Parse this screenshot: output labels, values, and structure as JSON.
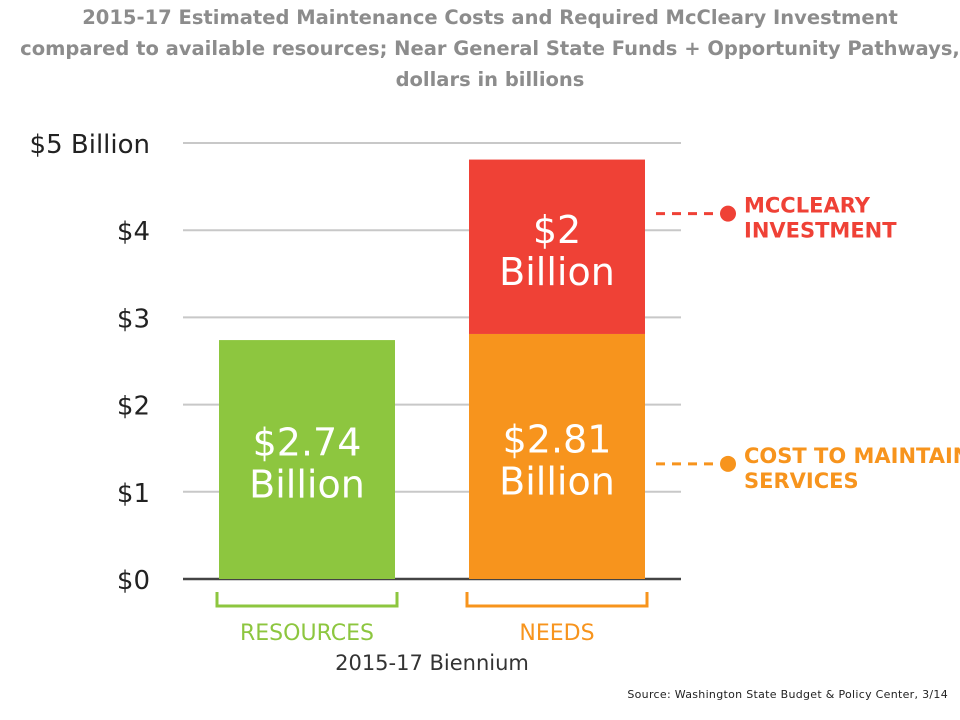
{
  "title": {
    "line1": "2015-17 Estimated Maintenance Costs and Required McCleary Investment",
    "line2": "compared to available resources; Near General State Funds + Opportunity Pathways,",
    "line3": "dollars in billions"
  },
  "source": "Source: Washington State Budget & Policy Center, 3/14",
  "chart_data": {
    "type": "bar",
    "stacked": true,
    "categories": [
      "RESOURCES",
      "NEEDS"
    ],
    "xlabel": "2015-17 Biennium",
    "ylim": [
      0,
      5
    ],
    "yticks": [
      {
        "value": 0,
        "label": "$0"
      },
      {
        "value": 1,
        "label": "$1"
      },
      {
        "value": 2,
        "label": "$2"
      },
      {
        "value": 3,
        "label": "$3"
      },
      {
        "value": 4,
        "label": "$4"
      },
      {
        "value": 5,
        "label": "$5 Billion"
      }
    ],
    "grid": true,
    "bars": [
      {
        "category": "RESOURCES",
        "segments": [
          {
            "value": 2.74,
            "label": [
              "$2.74",
              "Billion"
            ],
            "color": "#8dc63f"
          }
        ]
      },
      {
        "category": "NEEDS",
        "segments": [
          {
            "value": 2.81,
            "label": [
              "$2.81",
              "Billion"
            ],
            "color": "#f7941d"
          },
          {
            "value": 2.0,
            "label": [
              "$2",
              "Billion"
            ],
            "color": "#ef4136"
          }
        ]
      }
    ],
    "legend": [
      {
        "lines": [
          "MCCLEARY",
          "INVESTMENT"
        ],
        "color": "#ef4136"
      },
      {
        "lines": [
          "COST TO MAINTAIN",
          "SERVICES"
        ],
        "color": "#f7941d"
      }
    ],
    "category_colors": [
      "#8dc63f",
      "#f7941d"
    ]
  }
}
